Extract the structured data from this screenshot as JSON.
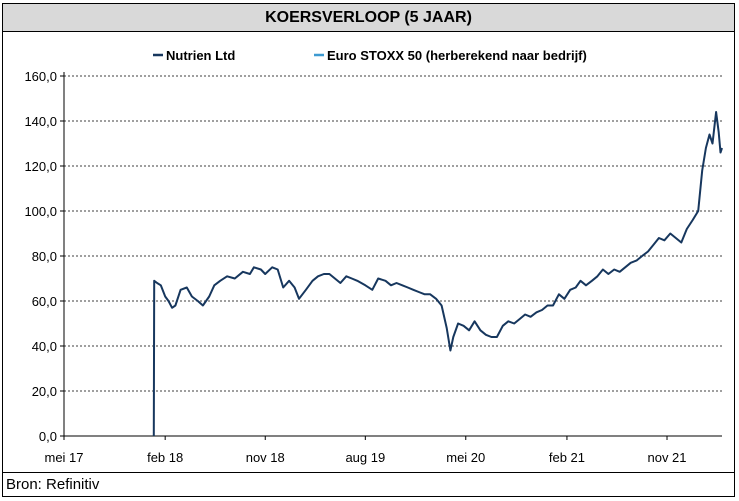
{
  "chart_data": {
    "type": "line",
    "title": "KOERSVERLOOP (5 JAAR)",
    "source": "Bron: Refinitiv",
    "ylim": [
      0,
      160
    ],
    "yticks": [
      "0,0",
      "20,0",
      "40,0",
      "60,0",
      "80,0",
      "100,0",
      "120,0",
      "140,0",
      "160,0"
    ],
    "ytick_values": [
      0,
      20,
      40,
      60,
      80,
      100,
      120,
      140,
      160
    ],
    "xlim": [
      "2017-05-01",
      "2022-03-31"
    ],
    "xticks": [
      {
        "label": "mei 17",
        "date": "2017-05-01"
      },
      {
        "label": "feb 18",
        "date": "2018-02-01"
      },
      {
        "label": "nov 18",
        "date": "2018-11-01"
      },
      {
        "label": "aug 19",
        "date": "2019-08-01"
      },
      {
        "label": "mei 20",
        "date": "2020-05-01"
      },
      {
        "label": "feb 21",
        "date": "2021-02-01"
      },
      {
        "label": "nov 21",
        "date": "2021-11-01"
      }
    ],
    "grid": true,
    "legend_position": "top",
    "series": [
      {
        "name": "Nutrien Ltd",
        "color": "#17375e",
        "points": [
          [
            "2018-01-01",
            0
          ],
          [
            "2018-01-02",
            69
          ],
          [
            "2018-01-10",
            68
          ],
          [
            "2018-01-20",
            67
          ],
          [
            "2018-02-01",
            62
          ],
          [
            "2018-02-10",
            60
          ],
          [
            "2018-02-20",
            57
          ],
          [
            "2018-03-01",
            58
          ],
          [
            "2018-03-15",
            65
          ],
          [
            "2018-04-01",
            66
          ],
          [
            "2018-04-15",
            62
          ],
          [
            "2018-05-01",
            60
          ],
          [
            "2018-05-15",
            58
          ],
          [
            "2018-06-01",
            62
          ],
          [
            "2018-06-15",
            67
          ],
          [
            "2018-07-01",
            69
          ],
          [
            "2018-07-20",
            71
          ],
          [
            "2018-08-10",
            70
          ],
          [
            "2018-09-01",
            73
          ],
          [
            "2018-09-20",
            72
          ],
          [
            "2018-10-01",
            75
          ],
          [
            "2018-10-20",
            74
          ],
          [
            "2018-11-01",
            72
          ],
          [
            "2018-11-20",
            75
          ],
          [
            "2018-12-05",
            74
          ],
          [
            "2018-12-20",
            66
          ],
          [
            "2019-01-05",
            69
          ],
          [
            "2019-01-20",
            66
          ],
          [
            "2019-02-01",
            61
          ],
          [
            "2019-02-20",
            65
          ],
          [
            "2019-03-10",
            69
          ],
          [
            "2019-03-25",
            71
          ],
          [
            "2019-04-10",
            72
          ],
          [
            "2019-04-25",
            72
          ],
          [
            "2019-05-10",
            70
          ],
          [
            "2019-05-25",
            68
          ],
          [
            "2019-06-10",
            71
          ],
          [
            "2019-06-25",
            70
          ],
          [
            "2019-07-10",
            69
          ],
          [
            "2019-08-01",
            67
          ],
          [
            "2019-08-20",
            65
          ],
          [
            "2019-09-05",
            70
          ],
          [
            "2019-09-25",
            69
          ],
          [
            "2019-10-10",
            67
          ],
          [
            "2019-10-25",
            68
          ],
          [
            "2019-11-10",
            67
          ],
          [
            "2019-11-25",
            66
          ],
          [
            "2019-12-10",
            65
          ],
          [
            "2019-12-25",
            64
          ],
          [
            "2020-01-10",
            63
          ],
          [
            "2020-01-25",
            63
          ],
          [
            "2020-02-10",
            61
          ],
          [
            "2020-02-25",
            58
          ],
          [
            "2020-03-10",
            48
          ],
          [
            "2020-03-20",
            38
          ],
          [
            "2020-03-28",
            44
          ],
          [
            "2020-04-10",
            50
          ],
          [
            "2020-04-25",
            49
          ],
          [
            "2020-05-10",
            47
          ],
          [
            "2020-05-25",
            51
          ],
          [
            "2020-06-10",
            47
          ],
          [
            "2020-06-25",
            45
          ],
          [
            "2020-07-10",
            44
          ],
          [
            "2020-07-25",
            44
          ],
          [
            "2020-08-10",
            49
          ],
          [
            "2020-08-25",
            51
          ],
          [
            "2020-09-10",
            50
          ],
          [
            "2020-09-25",
            52
          ],
          [
            "2020-10-10",
            54
          ],
          [
            "2020-10-25",
            53
          ],
          [
            "2020-11-10",
            55
          ],
          [
            "2020-11-25",
            56
          ],
          [
            "2020-12-10",
            58
          ],
          [
            "2020-12-25",
            58
          ],
          [
            "2021-01-10",
            63
          ],
          [
            "2021-01-25",
            61
          ],
          [
            "2021-02-10",
            65
          ],
          [
            "2021-02-25",
            66
          ],
          [
            "2021-03-10",
            69
          ],
          [
            "2021-03-25",
            67
          ],
          [
            "2021-04-10",
            69
          ],
          [
            "2021-04-25",
            71
          ],
          [
            "2021-05-10",
            74
          ],
          [
            "2021-05-25",
            72
          ],
          [
            "2021-06-10",
            74
          ],
          [
            "2021-06-25",
            73
          ],
          [
            "2021-07-10",
            75
          ],
          [
            "2021-07-25",
            77
          ],
          [
            "2021-08-10",
            78
          ],
          [
            "2021-08-25",
            80
          ],
          [
            "2021-09-10",
            82
          ],
          [
            "2021-09-25",
            85
          ],
          [
            "2021-10-10",
            88
          ],
          [
            "2021-10-25",
            87
          ],
          [
            "2021-11-10",
            90
          ],
          [
            "2021-11-25",
            88
          ],
          [
            "2021-12-10",
            86
          ],
          [
            "2021-12-25",
            92
          ],
          [
            "2022-01-10",
            96
          ],
          [
            "2022-01-25",
            100
          ],
          [
            "2022-02-05",
            118
          ],
          [
            "2022-02-15",
            128
          ],
          [
            "2022-02-25",
            134
          ],
          [
            "2022-03-05",
            130
          ],
          [
            "2022-03-15",
            144
          ],
          [
            "2022-03-22",
            135
          ],
          [
            "2022-03-27",
            126
          ],
          [
            "2022-03-31",
            128
          ]
        ]
      },
      {
        "name": "Euro STOXX 50 (herberekend naar bedrijf)",
        "color": "#3d9ad1",
        "points": []
      }
    ]
  }
}
